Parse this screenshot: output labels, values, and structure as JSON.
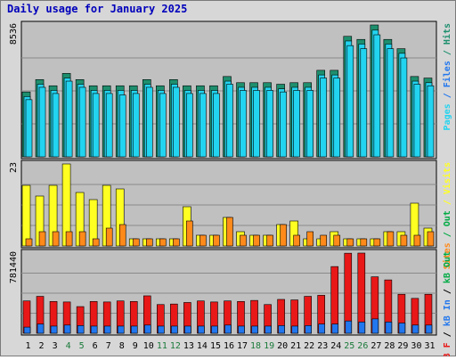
{
  "chart_data": {
    "type": "bar",
    "title": "Daily usage for January 2025",
    "categories": [
      "1",
      "2",
      "3",
      "4",
      "5",
      "6",
      "7",
      "8",
      "9",
      "10",
      "11",
      "12",
      "13",
      "14",
      "15",
      "16",
      "17",
      "18",
      "19",
      "20",
      "21",
      "22",
      "23",
      "24",
      "25",
      "26",
      "27",
      "28",
      "29",
      "30",
      "31"
    ],
    "weekend_days": [
      "4",
      "5",
      "11",
      "12",
      "18",
      "19",
      "25",
      "26"
    ],
    "colors": {
      "background": "#c0c0c0",
      "weekday_label": "#000000",
      "weekend_label": "#1a7a3a",
      "hits": "#1e8f6e",
      "files": "#22d4f0",
      "pages": "#22d4f0",
      "visits": "#ffff22",
      "sites": "#ff8a1a",
      "kbytes": "#e81818",
      "kb_in": "#2277ee",
      "kb_out": "#00aa44",
      "title": "#0000bb"
    },
    "panels": [
      {
        "name": "hits-files-pages",
        "ymax_label": "8536",
        "ylim": [
          0,
          8536
        ],
        "legend": [
          {
            "text": "Pages",
            "color": "#22d4f0"
          },
          {
            "text": "Files",
            "color": "#2277ee"
          },
          {
            "text": "Hits",
            "color": "#1e8f6e"
          }
        ],
        "series": [
          {
            "name": "Hits",
            "values": [
              4200,
              5000,
              4600,
              5400,
              5000,
              4600,
              4600,
              4600,
              4600,
              5000,
              4600,
              5000,
              4600,
              4600,
              4600,
              5200,
              4800,
              4800,
              4800,
              4700,
              4800,
              4800,
              5600,
              5600,
              7800,
              7600,
              8536,
              7600,
              7000,
              5200,
              5100
            ]
          },
          {
            "name": "Files",
            "values": [
              3900,
              4700,
              4300,
              5100,
              4700,
              4300,
              4300,
              4300,
              4300,
              4700,
              4300,
              4700,
              4300,
              4300,
              4300,
              4900,
              4500,
              4500,
              4500,
              4400,
              4500,
              4500,
              5300,
              5300,
              7500,
              7300,
              8200,
              7300,
              6700,
              4900,
              4800
            ]
          },
          {
            "name": "Pages",
            "values": [
              3700,
              4500,
              4100,
              4900,
              4500,
              4100,
              4100,
              4000,
              4100,
              4500,
              4100,
              4500,
              4100,
              4100,
              4100,
              4700,
              4300,
              4300,
              4300,
              4200,
              4300,
              4300,
              5100,
              5100,
              7200,
              7000,
              7900,
              7000,
              6400,
              4700,
              4600
            ]
          }
        ]
      },
      {
        "name": "visits-sites",
        "ymax_label": "23",
        "ylim": [
          0,
          23
        ],
        "legend": [
          {
            "text": "Sites",
            "color": "#ff8a1a"
          },
          {
            "text": "Out",
            "color": "#00aa44"
          },
          {
            "text": "Visits",
            "color": "#ffff22"
          }
        ],
        "series": [
          {
            "name": "Visits",
            "values": [
              17,
              14,
              17,
              23,
              15,
              13,
              17,
              16,
              2,
              2,
              2,
              2,
              11,
              3,
              3,
              8,
              4,
              3,
              3,
              6,
              7,
              2,
              2,
              4,
              2,
              2,
              2,
              4,
              4,
              12,
              5
            ]
          },
          {
            "name": "Sites",
            "values": [
              2,
              4,
              4,
              4,
              4,
              2,
              5,
              6,
              2,
              2,
              2,
              2,
              7,
              3,
              3,
              8,
              3,
              3,
              3,
              6,
              3,
              4,
              3,
              3,
              2,
              2,
              2,
              4,
              3,
              3,
              4
            ]
          }
        ]
      },
      {
        "name": "kbytes",
        "ymax_label": "781440",
        "ylim": [
          0,
          781440
        ],
        "legend": [
          {
            "text": "kB F",
            "color": "#e81818"
          },
          {
            "text": "/",
            "color": "#000000"
          },
          {
            "text": "kB In",
            "color": "#2277ee"
          },
          {
            "text": "/",
            "color": "#000000"
          },
          {
            "text": "kB Out",
            "color": "#00aa44"
          }
        ],
        "series": [
          {
            "name": "kB F",
            "values": [
              315000,
              360000,
              310000,
              305000,
              260000,
              310000,
              305000,
              315000,
              310000,
              365000,
              280000,
              285000,
              300000,
              315000,
              305000,
              315000,
              310000,
              320000,
              280000,
              330000,
              325000,
              360000,
              370000,
              650000,
              780000,
              781440,
              550000,
              520000,
              380000,
              340000,
              380000
            ]
          },
          {
            "name": "kB In",
            "values": [
              60000,
              90000,
              70000,
              80000,
              75000,
              70000,
              70000,
              70000,
              70000,
              80000,
              70000,
              70000,
              70000,
              70000,
              70000,
              80000,
              70000,
              70000,
              70000,
              75000,
              70000,
              75000,
              90000,
              90000,
              120000,
              110000,
              140000,
              110000,
              100000,
              80000,
              80000
            ]
          }
        ]
      }
    ]
  }
}
